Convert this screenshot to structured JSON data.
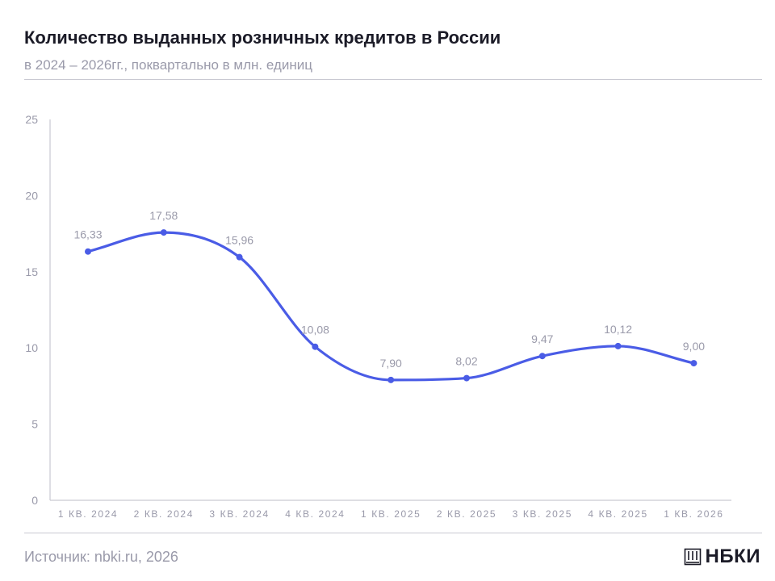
{
  "title": "Количество выданных розничных кредитов в России",
  "subtitle": "в 2024 – 2026гг., поквартально в млн. единиц",
  "source": "Источник: nbki.ru, 2026",
  "logo": {
    "text": "НБКИ",
    "icon": "building-icon"
  },
  "colors": {
    "line": "#4a5ce6",
    "axis": "#c9c9d2",
    "label": "#9a9aaa",
    "text": "#1b1b27"
  },
  "chart_data": {
    "type": "line",
    "title": "Количество выданных розничных кредитов в России",
    "subtitle": "в 2024 – 2026гг., поквартально в млн. единиц",
    "xlabel": "",
    "ylabel": "",
    "categories": [
      "1 КВ. 2024",
      "2 КВ. 2024",
      "3 КВ. 2024",
      "4 КВ. 2024",
      "1 КВ. 2025",
      "2 КВ. 2025",
      "3 КВ. 2025",
      "4 КВ. 2025",
      "1 КВ. 2026"
    ],
    "series": [
      {
        "values": [
          16.33,
          17.58,
          15.96,
          10.08,
          7.9,
          8.02,
          9.47,
          10.12,
          9.0
        ],
        "labels": [
          "16,33",
          "17,58",
          "15,96",
          "10,08",
          "7,90",
          "8,02",
          "9,47",
          "10,12",
          "9,00"
        ]
      }
    ],
    "ylim": [
      0,
      25
    ],
    "yticks": [
      0,
      5,
      10,
      15,
      20,
      25
    ],
    "grid": false,
    "legend": "none",
    "smooth": true
  }
}
